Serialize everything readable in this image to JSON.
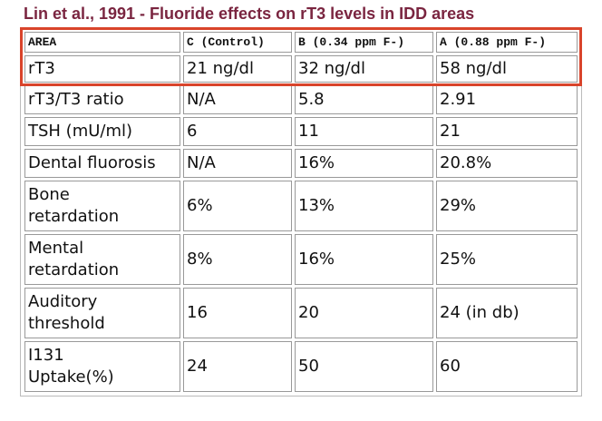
{
  "title": "Lin et al., 1991 - Fluoride effects on rT3 levels in IDD areas",
  "table": {
    "header": [
      "AREA",
      "C (Control)",
      "B (0.34 ppm F-)",
      "A (0.88 ppm F-)"
    ],
    "rows": [
      [
        "rT3",
        "21 ng/dl",
        "32 ng/dl",
        "58 ng/dl"
      ],
      [
        "rT3/T3 ratio",
        "N/A",
        "5.8",
        "2.91"
      ],
      [
        "TSH (mU/ml)",
        "6",
        "11",
        "21"
      ],
      [
        "Dental fluorosis",
        "N/A",
        "16%",
        "20.8%"
      ],
      [
        "Bone retardation",
        "6%",
        "13%",
        "29%"
      ],
      [
        "Mental retardation",
        "8%",
        "16%",
        "25%"
      ],
      [
        "Auditory threshold",
        "16",
        "20",
        "24 (in db)"
      ],
      [
        "I131 Uptake(%)",
        "24",
        "50",
        "60"
      ]
    ]
  }
}
